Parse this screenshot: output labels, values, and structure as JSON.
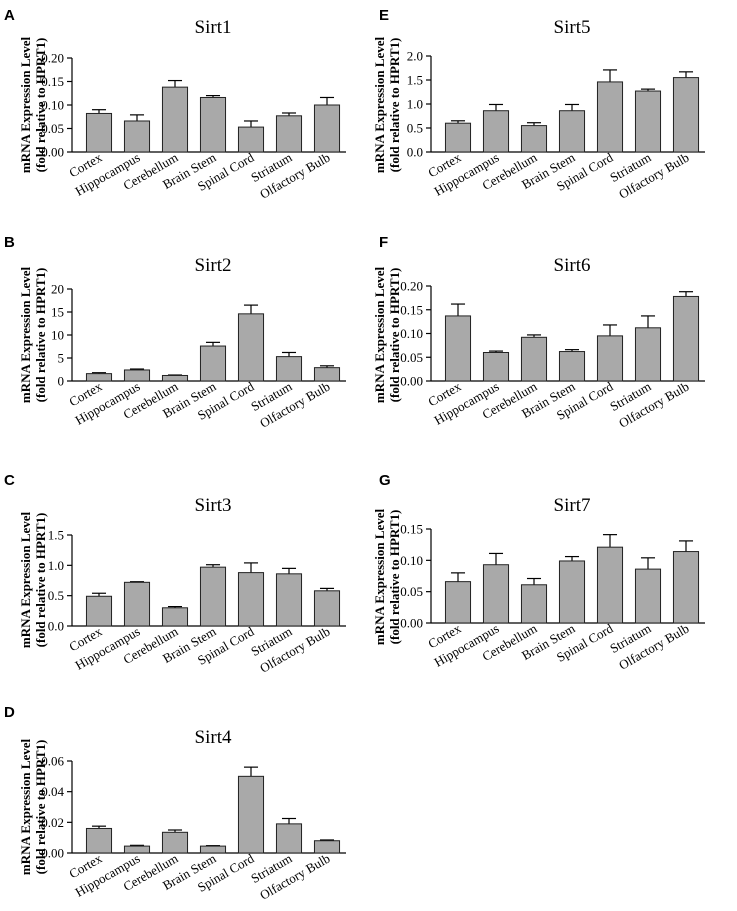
{
  "figure": {
    "ylabel_line1": "mRNA Expression Level",
    "ylabel_line2": "(fold relative to HPRT1)"
  },
  "chart_data": [
    {
      "id": "A",
      "title": "Sirt1",
      "type": "bar",
      "categories": [
        "Cortex",
        "Hippocampus",
        "Cerebellum",
        "Brain Stem",
        "Spinal Cord",
        "Striatum",
        "Olfactory Bulb"
      ],
      "values": [
        0.082,
        0.066,
        0.138,
        0.116,
        0.053,
        0.077,
        0.1
      ],
      "errors": [
        0.008,
        0.013,
        0.014,
        0.004,
        0.013,
        0.006,
        0.016
      ],
      "yticks": [
        0.0,
        0.05,
        0.1,
        0.15,
        0.2
      ],
      "ytick_labels": [
        "0.00",
        "0.05",
        "0.10",
        "0.15",
        "0.20"
      ],
      "ylim": [
        0,
        0.2
      ]
    },
    {
      "id": "B",
      "title": "Sirt2",
      "type": "bar",
      "categories": [
        "Cortex",
        "Hippocampus",
        "Cerebellum",
        "Brain Stem",
        "Spinal Cord",
        "Striatum",
        "Olfactory Bulb"
      ],
      "values": [
        1.6,
        2.4,
        1.2,
        7.6,
        14.6,
        5.3,
        2.9
      ],
      "errors": [
        0.2,
        0.2,
        0.1,
        0.8,
        1.9,
        0.9,
        0.4
      ],
      "yticks": [
        0,
        5,
        10,
        15,
        20
      ],
      "ytick_labels": [
        "0",
        "5",
        "10",
        "15",
        "20"
      ],
      "ylim": [
        0,
        20
      ]
    },
    {
      "id": "C",
      "title": "Sirt3",
      "type": "bar",
      "categories": [
        "Cortex",
        "Hippocampus",
        "Cerebellum",
        "Brain Stem",
        "Spinal Cord",
        "Striatum",
        "Olfactory Bulb"
      ],
      "values": [
        0.49,
        0.72,
        0.3,
        0.97,
        0.88,
        0.86,
        0.58
      ],
      "errors": [
        0.05,
        0.01,
        0.02,
        0.04,
        0.16,
        0.09,
        0.04
      ],
      "yticks": [
        0.0,
        0.5,
        1.0,
        1.5
      ],
      "ytick_labels": [
        "0.0",
        "0.5",
        "1.0",
        "1.5"
      ],
      "ylim": [
        0,
        1.5
      ]
    },
    {
      "id": "D",
      "title": "Sirt4",
      "type": "bar",
      "categories": [
        "Cortex",
        "Hippocampus",
        "Cerebellum",
        "Brain Stem",
        "Spinal Cord",
        "Striatum",
        "Olfactory Bulb"
      ],
      "values": [
        0.016,
        0.0045,
        0.0135,
        0.0045,
        0.05,
        0.019,
        0.008
      ],
      "errors": [
        0.0015,
        0.0005,
        0.0015,
        0.0003,
        0.006,
        0.0035,
        0.0005
      ],
      "yticks": [
        0.0,
        0.02,
        0.04,
        0.06
      ],
      "ytick_labels": [
        "0.00",
        "0.02",
        "0.04",
        "0.06"
      ],
      "ylim": [
        0,
        0.06
      ]
    },
    {
      "id": "E",
      "title": "Sirt5",
      "type": "bar",
      "categories": [
        "Cortex",
        "Hippocampus",
        "Cerebellum",
        "Brain Stem",
        "Spinal Cord",
        "Striatum",
        "Olfactory Bulb"
      ],
      "values": [
        0.6,
        0.86,
        0.55,
        0.86,
        1.46,
        1.27,
        1.55
      ],
      "errors": [
        0.05,
        0.13,
        0.06,
        0.13,
        0.25,
        0.04,
        0.12
      ],
      "yticks": [
        0.0,
        0.5,
        1.0,
        1.5,
        2.0
      ],
      "ytick_labels": [
        "0.0",
        "0.5",
        "1.0",
        "1.5",
        "2.0"
      ],
      "ylim": [
        0,
        2.0
      ]
    },
    {
      "id": "F",
      "title": "Sirt6",
      "type": "bar",
      "categories": [
        "Cortex",
        "Hippocampus",
        "Cerebellum",
        "Brain Stem",
        "Spinal Cord",
        "Striatum",
        "Olfactory Bulb"
      ],
      "values": [
        0.137,
        0.06,
        0.092,
        0.062,
        0.095,
        0.112,
        0.178
      ],
      "errors": [
        0.025,
        0.003,
        0.005,
        0.004,
        0.023,
        0.025,
        0.01
      ],
      "yticks": [
        0.0,
        0.05,
        0.1,
        0.15,
        0.2
      ],
      "ytick_labels": [
        "0.00",
        "0.05",
        "0.10",
        "0.15",
        "0.20"
      ],
      "ylim": [
        0,
        0.2
      ]
    },
    {
      "id": "G",
      "title": "Sirt7",
      "type": "bar",
      "categories": [
        "Cortex",
        "Hippocampus",
        "Cerebellum",
        "Brain Stem",
        "Spinal Cord",
        "Striatum",
        "Olfactory Bulb"
      ],
      "values": [
        0.066,
        0.093,
        0.061,
        0.099,
        0.121,
        0.086,
        0.114
      ],
      "errors": [
        0.014,
        0.018,
        0.01,
        0.007,
        0.02,
        0.018,
        0.017
      ],
      "yticks": [
        0.0,
        0.05,
        0.1,
        0.15
      ],
      "ytick_labels": [
        "0.00",
        "0.05",
        "0.10",
        "0.15"
      ],
      "ylim": [
        0,
        0.15
      ]
    }
  ]
}
